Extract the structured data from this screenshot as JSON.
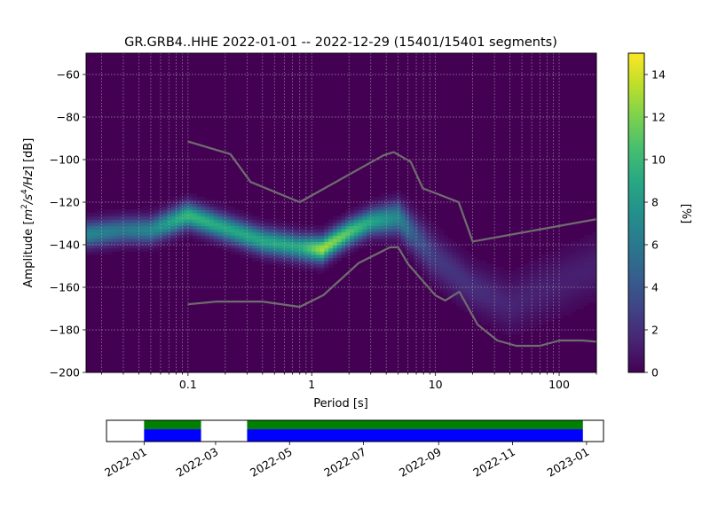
{
  "chart_data": [
    {
      "type": "heatmap",
      "title": "GR.GRB4..HHE   2022-01-01 -- 2022-12-29  (15401/15401 segments)",
      "xlabel": "Period [s]",
      "ylabel_parts": {
        "pre": "Amplitude [",
        "m": "m",
        "exp2": "2",
        "s": "/s",
        "exp4": "4",
        "hz": "/Hz",
        "post": "] [dB]"
      },
      "x_scale": "log",
      "xlim": [
        0.015,
        200
      ],
      "ylim": [
        -200,
        -50
      ],
      "x_ticks": [
        {
          "value": 0.1,
          "label": "0.1"
        },
        {
          "value": 1,
          "label": "1"
        },
        {
          "value": 10,
          "label": "10"
        },
        {
          "value": 100,
          "label": "100"
        }
      ],
      "y_ticks": [
        {
          "value": -60,
          "label": "−60"
        },
        {
          "value": -80,
          "label": "−80"
        },
        {
          "value": -100,
          "label": "−100"
        },
        {
          "value": -120,
          "label": "−120"
        },
        {
          "value": -140,
          "label": "−140"
        },
        {
          "value": -160,
          "label": "−160"
        },
        {
          "value": -180,
          "label": "−180"
        },
        {
          "value": -200,
          "label": "−200"
        }
      ],
      "grid": true,
      "colormap": "viridis",
      "colorbar": {
        "label": "[%]",
        "range": [
          0,
          15
        ],
        "ticks": [
          {
            "value": 0,
            "label": "0"
          },
          {
            "value": 2,
            "label": "2"
          },
          {
            "value": 4,
            "label": "4"
          },
          {
            "value": 6,
            "label": "6"
          },
          {
            "value": 8,
            "label": "8"
          },
          {
            "value": 10,
            "label": "10"
          },
          {
            "value": 12,
            "label": "12"
          },
          {
            "value": 14,
            "label": "14"
          }
        ]
      },
      "density_band": [
        {
          "period": 0.015,
          "center": -135,
          "spread": 4,
          "peak": 7
        },
        {
          "period": 0.03,
          "center": -133,
          "spread": 4,
          "peak": 6
        },
        {
          "period": 0.05,
          "center": -133,
          "spread": 4,
          "peak": 7
        },
        {
          "period": 0.1,
          "center": -126,
          "spread": 4,
          "peak": 10
        },
        {
          "period": 0.2,
          "center": -132,
          "spread": 4,
          "peak": 9
        },
        {
          "period": 0.4,
          "center": -138,
          "spread": 4,
          "peak": 9
        },
        {
          "period": 0.8,
          "center": -141,
          "spread": 4,
          "peak": 9
        },
        {
          "period": 1.2,
          "center": -142,
          "spread": 4,
          "peak": 13
        },
        {
          "period": 2,
          "center": -134,
          "spread": 4,
          "peak": 11
        },
        {
          "period": 3,
          "center": -129,
          "spread": 4,
          "peak": 9
        },
        {
          "period": 5,
          "center": -127,
          "spread": 5,
          "peak": 7
        },
        {
          "period": 7,
          "center": -136,
          "spread": 6,
          "peak": 4
        },
        {
          "period": 10,
          "center": -146,
          "spread": 7,
          "peak": 2.5
        },
        {
          "period": 20,
          "center": -160,
          "spread": 7,
          "peak": 2
        },
        {
          "period": 40,
          "center": -168,
          "spread": 8,
          "peak": 1.5
        },
        {
          "period": 100,
          "center": -158,
          "spread": 9,
          "peak": 1.3
        },
        {
          "period": 200,
          "center": -150,
          "spread": 9,
          "peak": 1.3
        }
      ],
      "series": [
        {
          "points": [
            [
              0.1,
              -91.5
            ],
            [
              0.22,
              -97.4
            ],
            [
              0.32,
              -110.5
            ],
            [
              0.8,
              -120
            ],
            [
              3.8,
              -98
            ],
            [
              4.6,
              -96.5
            ],
            [
              6.3,
              -101
            ],
            [
              7.9,
              -113.5
            ],
            [
              15.4,
              -120
            ],
            [
              20,
              -138.5
            ],
            [
              200,
              -128
            ]
          ]
        },
        {
          "points": [
            [
              0.1,
              -168
            ],
            [
              0.17,
              -166.7
            ],
            [
              0.4,
              -166.7
            ],
            [
              0.8,
              -169.2
            ],
            [
              1.24,
              -163.7
            ],
            [
              2.4,
              -148.6
            ],
            [
              4.3,
              -141.2
            ],
            [
              5.0,
              -141.2
            ],
            [
              6.0,
              -149
            ],
            [
              10,
              -163.8
            ],
            [
              12,
              -166.2
            ],
            [
              15.6,
              -162.1
            ],
            [
              21.9,
              -177.5
            ],
            [
              31.6,
              -185
            ],
            [
              45,
              -187.5
            ],
            [
              70,
              -187.5
            ],
            [
              101,
              -185
            ],
            [
              154,
              -185
            ],
            [
              200,
              -185.6
            ]
          ]
        }
      ]
    },
    {
      "type": "timeline",
      "xlim": [
        "2021-12-01",
        "2023-01-15"
      ],
      "x_ticks": [
        "2022-01",
        "2022-03",
        "2022-05",
        "2022-07",
        "2022-09",
        "2022-11",
        "2023-01"
      ],
      "coverage": [
        {
          "start": "2022-01-01",
          "end": "2022-02-17"
        },
        {
          "start": "2022-03-27",
          "end": "2022-12-29"
        }
      ],
      "colors": {
        "data": "#0000ff",
        "gaps_ok": "#008000"
      }
    }
  ]
}
